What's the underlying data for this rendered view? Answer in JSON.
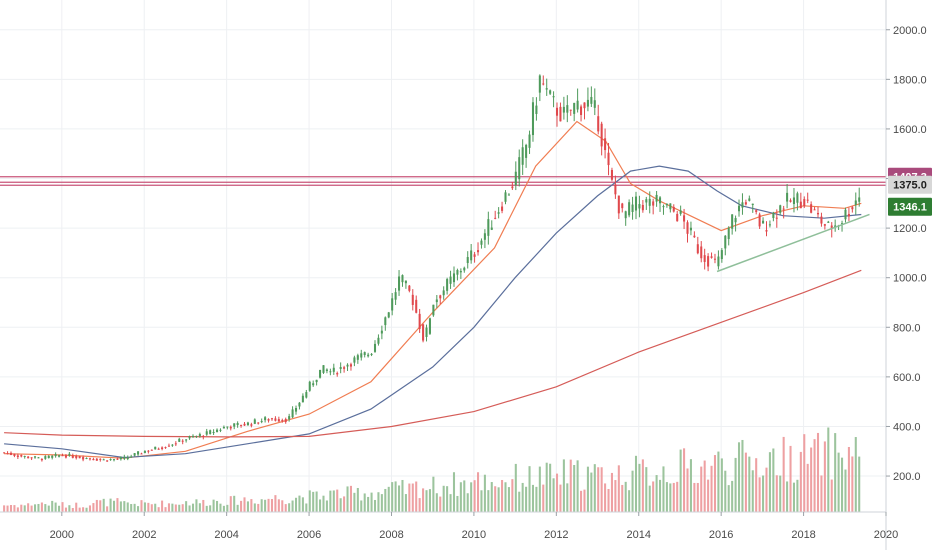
{
  "chart_data": {
    "type": "candlestick",
    "title": "",
    "xlabel": "",
    "ylabel": "",
    "x_ticks": [
      "2000",
      "2002",
      "2004",
      "2006",
      "2008",
      "2010",
      "2012",
      "2014",
      "2016",
      "2018",
      "2020"
    ],
    "y_ticks": [
      "200.0",
      "400.0",
      "600.0",
      "800.0",
      "1000.0",
      "1200.0",
      "1400.0",
      "1600.0",
      "1800.0",
      "2000.0"
    ],
    "xlim": [
      1998.5,
      2020.0
    ],
    "ylim": [
      55,
      2120
    ],
    "grid": true,
    "colors": {
      "up": "#4e9a5b",
      "down": "#e0484c",
      "volume_up": "#9cc49d",
      "volume_down": "#eea0a2",
      "ma_fast": "#f07d52",
      "ma_slow": "#5b6f9c",
      "ma_long": "#d55c58",
      "resistance": "#c9557a",
      "support_line": "#8fbf9a",
      "grid": "#eef0f3",
      "badge_price": "#a94a7c",
      "badge_level": "#d7d7d7",
      "badge_current": "#2e7d32"
    },
    "price_badges": [
      {
        "label": "1407.3",
        "value": 1407.3,
        "role": "level"
      },
      {
        "label": "1375.0",
        "value": 1375.0,
        "role": "level"
      },
      {
        "label": "1346.1",
        "value": 1346.1,
        "role": "current"
      }
    ],
    "horizontal_levels": [
      1407,
      1385,
      1373
    ],
    "trendlines": [
      {
        "name": "support",
        "points": [
          [
            2015.9,
            1025
          ],
          [
            2019.6,
            1255
          ]
        ]
      }
    ],
    "close_series": {
      "x": [
        1998.6,
        1999.0,
        1999.5,
        2000.0,
        2000.5,
        2001.0,
        2001.5,
        2002.0,
        2002.5,
        2003.0,
        2003.5,
        2004.0,
        2004.5,
        2005.0,
        2005.5,
        2006.0,
        2006.3,
        2006.6,
        2007.0,
        2007.5,
        2008.0,
        2008.2,
        2008.5,
        2008.8,
        2009.0,
        2009.5,
        2010.0,
        2010.5,
        2011.0,
        2011.3,
        2011.6,
        2011.9,
        2012.2,
        2012.5,
        2012.8,
        2013.0,
        2013.3,
        2013.6,
        2014.0,
        2014.5,
        2015.0,
        2015.5,
        2015.9,
        2016.3,
        2016.6,
        2017.0,
        2017.5,
        2018.0,
        2018.3,
        2018.6,
        2018.9,
        2019.2,
        2019.4
      ],
      "values": [
        295,
        280,
        270,
        285,
        275,
        265,
        270,
        300,
        320,
        350,
        370,
        400,
        410,
        430,
        430,
        560,
        630,
        620,
        660,
        700,
        900,
        1000,
        920,
        740,
        900,
        1000,
        1100,
        1250,
        1400,
        1550,
        1800,
        1700,
        1650,
        1700,
        1700,
        1650,
        1400,
        1250,
        1300,
        1300,
        1250,
        1100,
        1050,
        1250,
        1320,
        1200,
        1300,
        1320,
        1250,
        1200,
        1230,
        1300,
        1346
      ]
    },
    "moving_averages": [
      {
        "role": "fast",
        "x": [
          1998.6,
          2000.0,
          2001.5,
          2003.0,
          2004.5,
          2006.0,
          2007.5,
          2009.0,
          2010.5,
          2011.5,
          2012.5,
          2013.2,
          2013.8,
          2014.5,
          2015.5,
          2016.0,
          2017.0,
          2018.0,
          2019.0,
          2019.4
        ],
        "values": [
          290,
          285,
          272,
          300,
          380,
          450,
          580,
          860,
          1120,
          1450,
          1630,
          1550,
          1380,
          1310,
          1230,
          1190,
          1250,
          1290,
          1280,
          1300
        ]
      },
      {
        "role": "slow",
        "x": [
          1998.6,
          2000.0,
          2001.5,
          2003.0,
          2004.5,
          2006.0,
          2007.5,
          2009.0,
          2010.0,
          2011.0,
          2012.0,
          2013.0,
          2013.8,
          2014.5,
          2015.2,
          2015.9,
          2016.5,
          2017.5,
          2018.5,
          2019.4
        ],
        "values": [
          330,
          310,
          275,
          290,
          330,
          370,
          470,
          640,
          800,
          1000,
          1180,
          1330,
          1430,
          1450,
          1430,
          1350,
          1290,
          1250,
          1240,
          1255
        ]
      },
      {
        "role": "long",
        "x": [
          1998.6,
          2000.0,
          2002.0,
          2004.0,
          2006.0,
          2008.0,
          2010.0,
          2012.0,
          2014.0,
          2016.0,
          2018.0,
          2019.4
        ],
        "values": [
          375,
          365,
          360,
          358,
          360,
          400,
          460,
          560,
          700,
          820,
          940,
          1030
        ]
      }
    ],
    "volume_relative": [
      0.05,
      0.06,
      0.05,
      0.07,
      0.06,
      0.06,
      0.07,
      0.08,
      0.09,
      0.1,
      0.11,
      0.13,
      0.14,
      0.16,
      0.18,
      0.2,
      0.22,
      0.24,
      0.25,
      0.27,
      0.26,
      0.28,
      0.3,
      0.32,
      0.34,
      0.36,
      0.38,
      0.4,
      0.42,
      0.44
    ]
  }
}
